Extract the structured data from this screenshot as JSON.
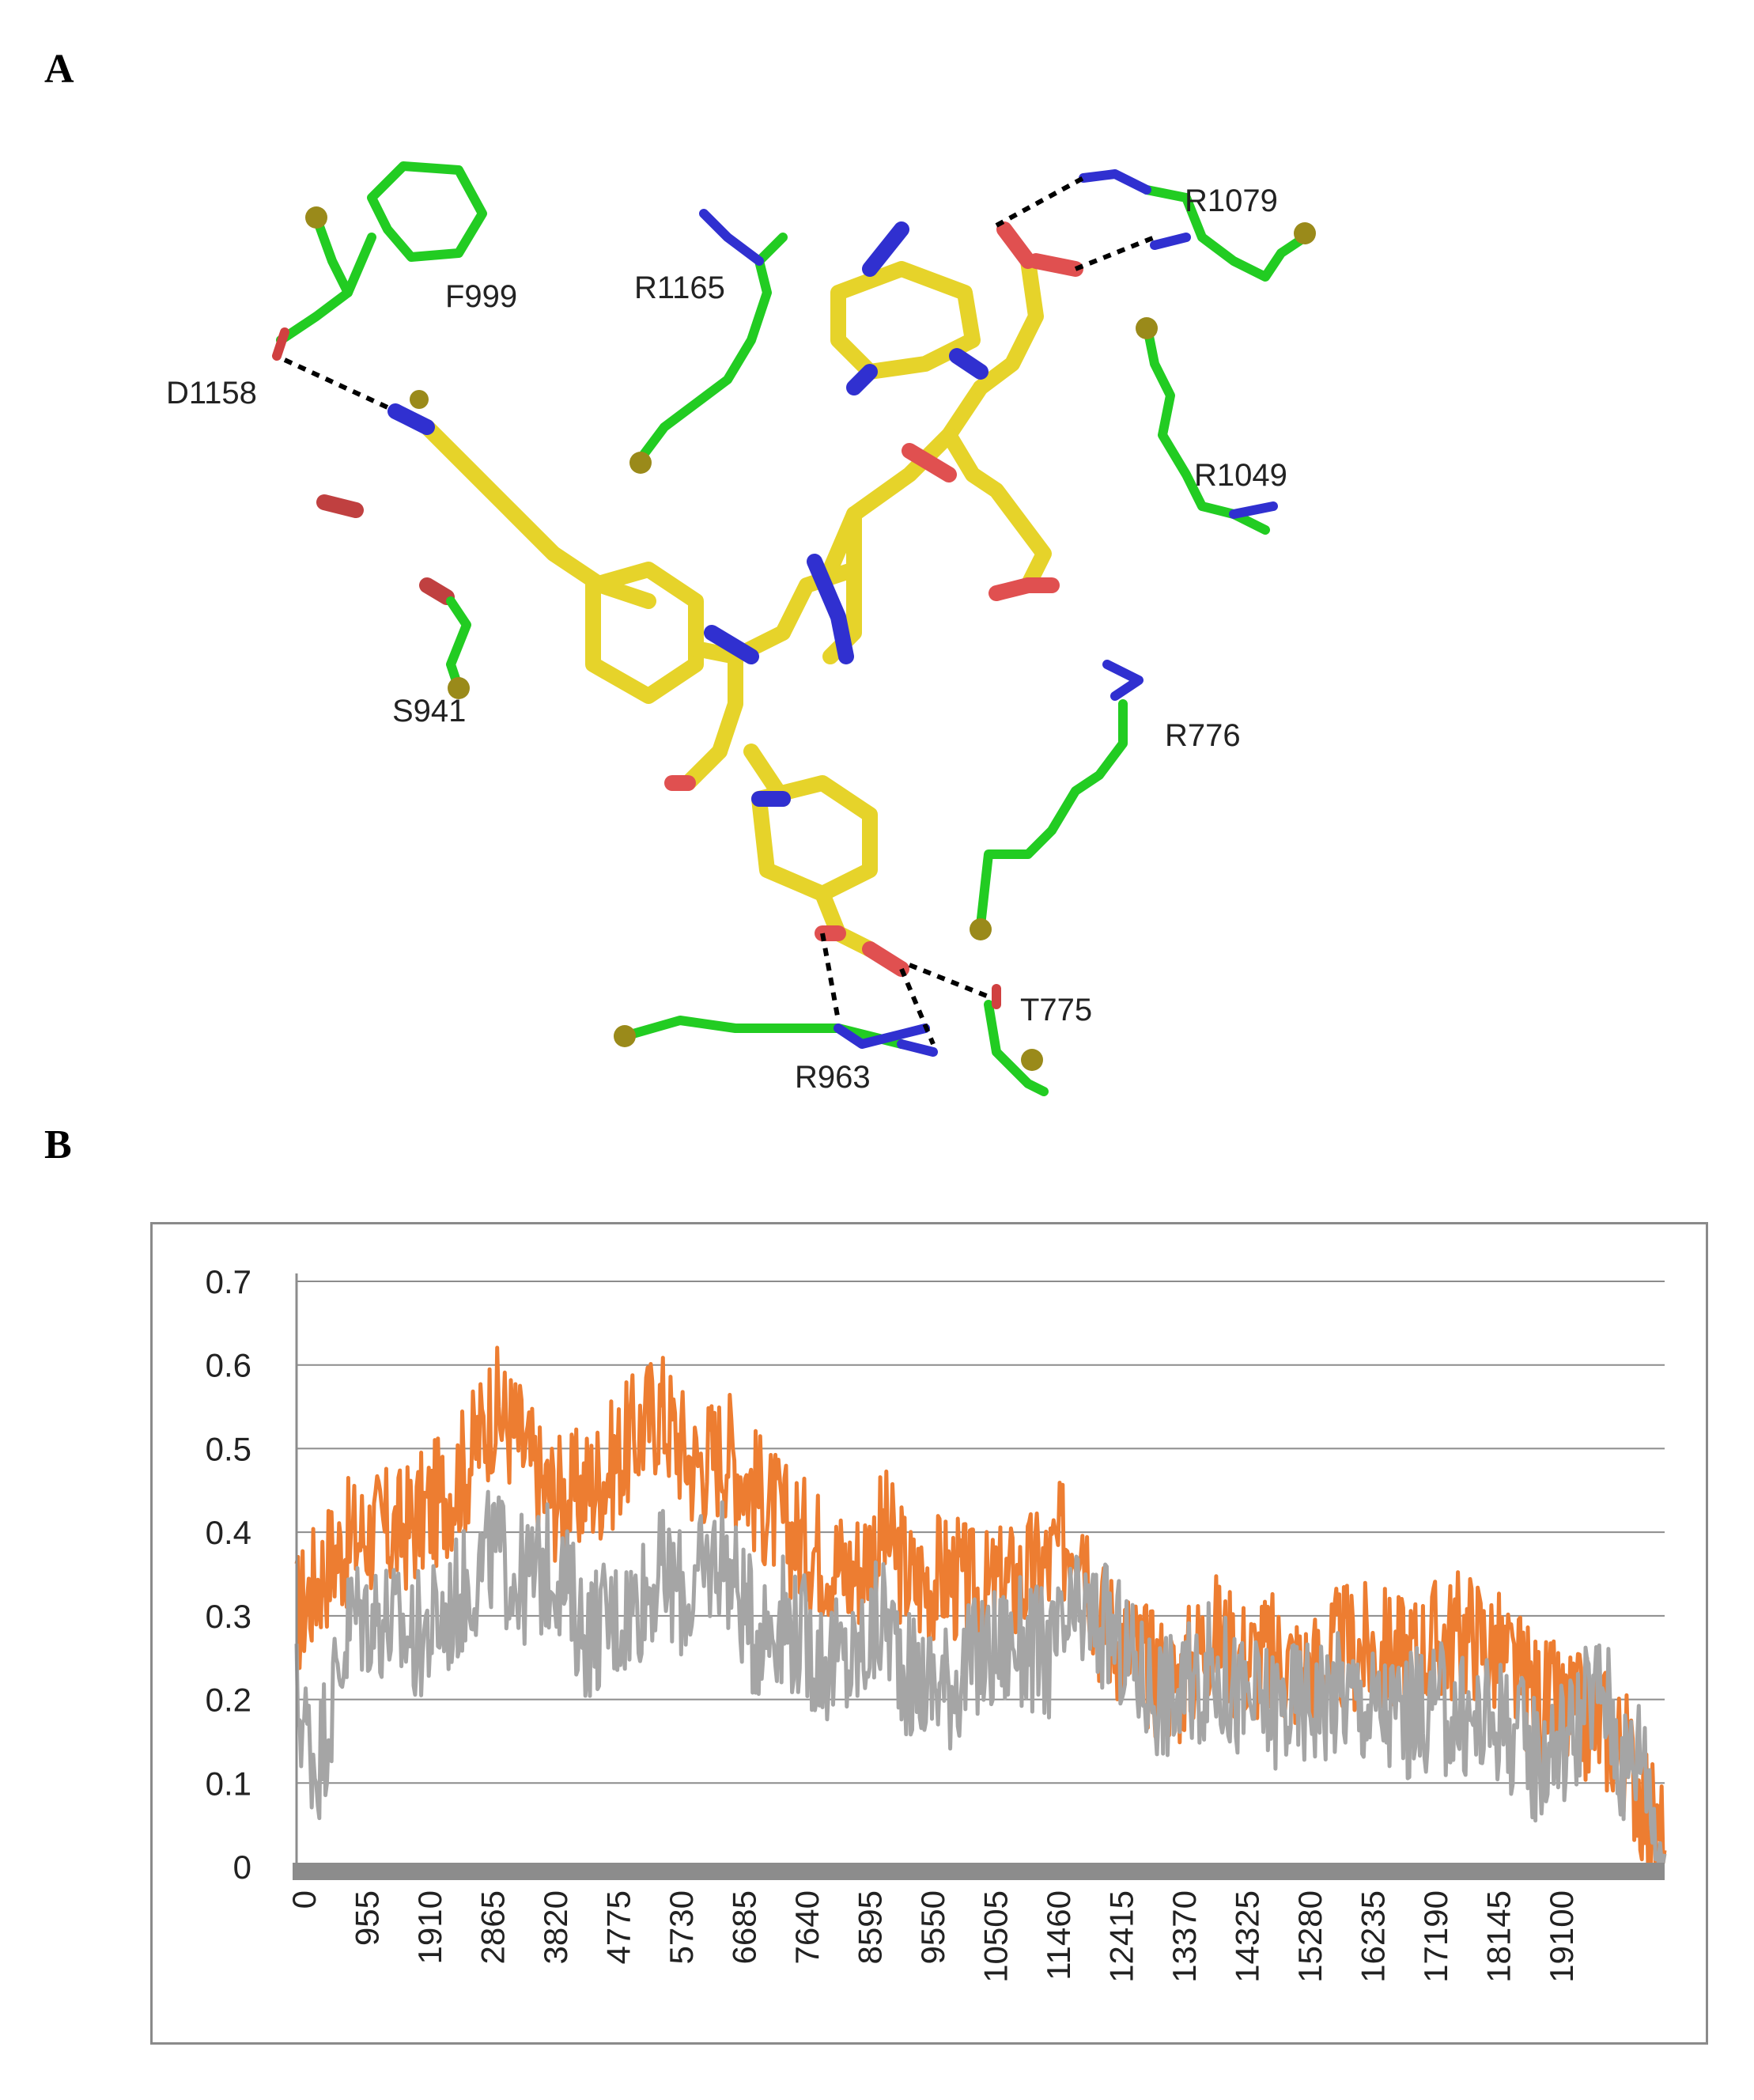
{
  "panels": {
    "a_label": "A",
    "b_label": "B"
  },
  "molecule": {
    "residues": [
      "F999",
      "R1165",
      "R1079",
      "D1158",
      "R1049",
      "S941",
      "R776",
      "T775",
      "R963"
    ]
  },
  "chart_data": {
    "type": "line",
    "title": "",
    "xlabel": "",
    "ylabel": "",
    "ylim": [
      0,
      0.7
    ],
    "y_ticks": [
      "0",
      "0.1",
      "0.2",
      "0.3",
      "0.4",
      "0.5",
      "0.6",
      "0.7"
    ],
    "x_ticks": [
      "0",
      "955",
      "1910",
      "2865",
      "3820",
      "4775",
      "5730",
      "6685",
      "7640",
      "8595",
      "9550",
      "10505",
      "11460",
      "12415",
      "13370",
      "14325",
      "15280",
      "16235",
      "17190",
      "18145",
      "19100"
    ],
    "xlim": [
      0,
      20000
    ],
    "grid": true,
    "legend": "none",
    "series": [
      {
        "color": "#ed7d31",
        "x": [
          0,
          500,
          1000,
          1500,
          2000,
          2500,
          2865,
          3200,
          3600,
          4000,
          4500,
          5000,
          5300,
          5800,
          6300,
          6700,
          7200,
          7640,
          8100,
          8595,
          9000,
          9550,
          10000,
          10505,
          11000,
          11460,
          11700,
          12100,
          12415,
          12900,
          13370,
          13800,
          14325,
          14800,
          15280,
          15700,
          16235,
          16700,
          17190,
          17600,
          18145,
          18600,
          19100,
          19400,
          19700,
          19900
        ],
        "values": [
          0.3,
          0.37,
          0.4,
          0.4,
          0.43,
          0.48,
          0.55,
          0.52,
          0.45,
          0.44,
          0.47,
          0.52,
          0.55,
          0.48,
          0.5,
          0.45,
          0.4,
          0.38,
          0.35,
          0.4,
          0.34,
          0.35,
          0.32,
          0.34,
          0.36,
          0.42,
          0.3,
          0.27,
          0.24,
          0.22,
          0.28,
          0.25,
          0.25,
          0.23,
          0.26,
          0.26,
          0.25,
          0.27,
          0.28,
          0.25,
          0.2,
          0.18,
          0.17,
          0.14,
          0.08,
          0.03
        ]
      },
      {
        "color": "#a5a5a5",
        "x": [
          0,
          300,
          800,
          1200,
          1700,
          2200,
          2865,
          3300,
          3800,
          4200,
          4775,
          5300,
          5730,
          6200,
          6685,
          7100,
          7640,
          8100,
          8595,
          9000,
          9550,
          10000,
          10505,
          11000,
          11460,
          11900,
          12415,
          12900,
          13370,
          13800,
          14325,
          14800,
          15280,
          15700,
          16235,
          16700,
          17190,
          17600,
          18145,
          18600,
          19100,
          19400,
          19700,
          19900
        ],
        "values": [
          0.2,
          0.12,
          0.3,
          0.3,
          0.27,
          0.3,
          0.38,
          0.34,
          0.36,
          0.28,
          0.3,
          0.35,
          0.32,
          0.38,
          0.28,
          0.3,
          0.25,
          0.24,
          0.3,
          0.22,
          0.22,
          0.25,
          0.27,
          0.25,
          0.3,
          0.28,
          0.22,
          0.2,
          0.24,
          0.2,
          0.19,
          0.2,
          0.21,
          0.19,
          0.18,
          0.19,
          0.17,
          0.18,
          0.13,
          0.16,
          0.22,
          0.12,
          0.15,
          0.02
        ]
      }
    ]
  }
}
